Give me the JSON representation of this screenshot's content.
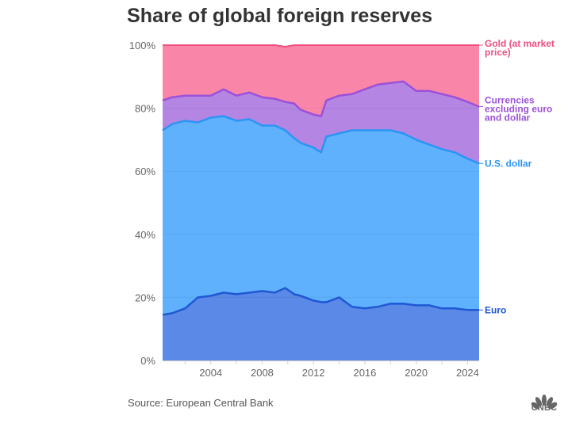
{
  "title": "Share of global foreign reserves",
  "source": "Source: European Central Bank",
  "logo": {
    "name": "cnbc-peacock-icon",
    "text": "CNBC"
  },
  "colors": {
    "gold_fill": "#f986a8",
    "gold_line": "#ee4f80",
    "currencies_fill": "#b485e3",
    "currencies_line": "#9b51d8",
    "usd_fill": "#60b1fd",
    "usd_line": "#2a95f4",
    "euro_fill": "#5b89e8",
    "euro_line": "#1f58d2",
    "gold_label": "#ee4f80",
    "currencies_label": "#9b51d8",
    "usd_label": "#2a95f4",
    "euro_label": "#1f58d2"
  },
  "chart_data": {
    "type": "area",
    "stacked": true,
    "title": "Share of global foreign reserves",
    "xlabel": "",
    "ylabel": "",
    "xlim": [
      2000.25,
      2024.9
    ],
    "ylim": [
      0,
      100
    ],
    "y_ticks": [
      "0%",
      "20%",
      "40%",
      "60%",
      "80%",
      "100%"
    ],
    "y_tick_values": [
      0,
      20,
      40,
      60,
      80,
      100
    ],
    "x_ticks": [
      "2004",
      "2008",
      "2012",
      "2016",
      "2020",
      "2024"
    ],
    "x_tick_values": [
      2004,
      2008,
      2012,
      2016,
      2020,
      2024
    ],
    "x_minor_ticks": [
      2002,
      2006,
      2010,
      2014,
      2018,
      2022
    ],
    "grid": true,
    "legend_placement": "right, direct labels at series ends",
    "x": [
      2000.25,
      2001,
      2002,
      2003,
      2004,
      2005,
      2006,
      2007,
      2008,
      2009,
      2009.8,
      2010.5,
      2011,
      2012,
      2012.6,
      2013,
      2014,
      2015,
      2016,
      2017,
      2018,
      2019,
      2020,
      2021,
      2022,
      2023,
      2024,
      2024.9
    ],
    "series": [
      {
        "name": "Euro",
        "label": "Euro",
        "values": [
          14.5,
          15,
          16.5,
          20,
          20.5,
          21.5,
          21,
          21.5,
          22,
          21.5,
          23,
          21,
          20.5,
          19,
          18.5,
          18.5,
          20,
          17,
          16.5,
          17,
          18,
          18,
          17.5,
          17.5,
          16.5,
          16.5,
          16,
          16
        ]
      },
      {
        "name": "U.S. dollar",
        "label": "U.S. dollar",
        "values": [
          58.5,
          60,
          59.5,
          55.5,
          56.5,
          56,
          55,
          55,
          52.5,
          53,
          50,
          49.5,
          48.5,
          48.5,
          47.5,
          52.5,
          52,
          56,
          56.5,
          56,
          55,
          54,
          52.5,
          51,
          50.5,
          49.5,
          48,
          46.5
        ]
      },
      {
        "name": "Currencies excluding euro and dollar",
        "label": "Currencies excluding euro and dollar",
        "values": [
          9.5,
          8.5,
          8,
          8.5,
          7,
          8.5,
          8,
          8.5,
          9,
          8.5,
          9,
          11,
          10.5,
          10.5,
          11.5,
          11.5,
          12,
          11.5,
          13,
          14.5,
          15,
          16.5,
          15.5,
          17,
          17.5,
          17.5,
          18,
          18
        ]
      },
      {
        "name": "Gold (at market price)",
        "label": "Gold (at market price)",
        "values": [
          17.5,
          16.5,
          16,
          16,
          16,
          14,
          16,
          15,
          16.5,
          17,
          17.5,
          18.5,
          20.5,
          22,
          22.5,
          17.5,
          16,
          15.5,
          14,
          12.5,
          12,
          11.5,
          14.5,
          14.5,
          15.5,
          16.5,
          18,
          19.5
        ]
      }
    ]
  }
}
